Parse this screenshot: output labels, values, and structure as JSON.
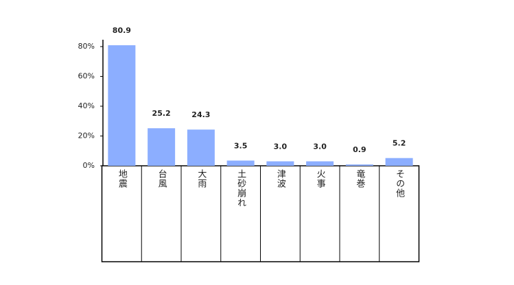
{
  "chart_data": {
    "type": "bar",
    "categories": [
      "地震",
      "台風",
      "大雨",
      "土砂崩れ",
      "津波",
      "火事",
      "竜巻",
      "その他"
    ],
    "values": [
      80.9,
      25.2,
      24.3,
      3.5,
      3.0,
      3.0,
      0.9,
      5.2
    ],
    "value_labels": [
      "80.9",
      "25.2",
      "24.3",
      "3.5",
      "3.0",
      "3.0",
      "0.9",
      "5.2"
    ],
    "color": "#8caeff",
    "ylim": [
      0,
      80
    ],
    "yticks": [
      {
        "value": 0,
        "label": "0%"
      },
      {
        "value": 20,
        "label": "20%"
      },
      {
        "value": 40,
        "label": "40%"
      },
      {
        "value": 60,
        "label": "60%"
      },
      {
        "value": 80,
        "label": "80%"
      }
    ]
  }
}
